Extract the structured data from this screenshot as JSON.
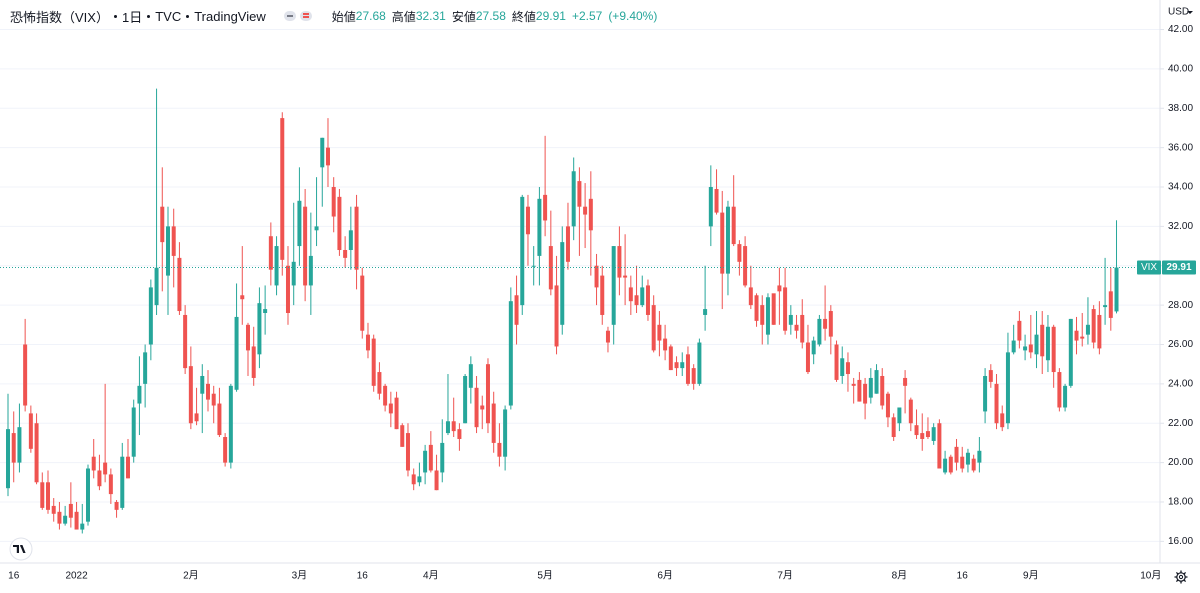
{
  "chart_data": {
    "type": "candlestick",
    "title": "恐怖指数（VIX）",
    "interval": "1日",
    "exchange": "TVC",
    "source": "TradingView",
    "ohlc_labels": {
      "open": "始値",
      "high": "高値",
      "low": "安値",
      "close": "終値"
    },
    "change": "+2.57",
    "change_percent": "(+9.40%)",
    "currency": "USD",
    "name": "VIX",
    "up_color": "#26a69a",
    "down_color": "#ef5350",
    "grid": true,
    "ylim": [
      14.9,
      43.5
    ],
    "yticks": [
      {
        "value": 16,
        "label": "16.00"
      },
      {
        "value": 18,
        "label": "18.00"
      },
      {
        "value": 20,
        "label": "20.00"
      },
      {
        "value": 22,
        "label": "22.00"
      },
      {
        "value": 24,
        "label": "24.00"
      },
      {
        "value": 26,
        "label": "26.00"
      },
      {
        "value": 28,
        "label": "28.00"
      },
      {
        "value": 30,
        "label": "30.00"
      },
      {
        "value": 32,
        "label": "32.00"
      },
      {
        "value": 34,
        "label": "34.00"
      },
      {
        "value": 36,
        "label": "36.00"
      },
      {
        "value": 38,
        "label": "38.00"
      },
      {
        "value": 40,
        "label": "40.00"
      },
      {
        "value": 42,
        "label": "42.00"
      }
    ],
    "categories": [
      null,
      "16",
      null,
      null,
      null,
      null,
      null,
      null,
      null,
      null,
      null,
      null,
      "2022",
      null,
      null,
      null,
      null,
      null,
      null,
      null,
      null,
      null,
      null,
      null,
      null,
      null,
      null,
      null,
      null,
      null,
      null,
      null,
      "2月",
      null,
      null,
      null,
      null,
      null,
      null,
      null,
      null,
      null,
      null,
      null,
      null,
      null,
      null,
      null,
      null,
      null,
      null,
      "3月",
      null,
      null,
      null,
      null,
      null,
      null,
      null,
      null,
      null,
      null,
      "16",
      null,
      null,
      null,
      null,
      null,
      null,
      null,
      null,
      null,
      null,
      null,
      "4月",
      null,
      null,
      null,
      null,
      null,
      null,
      null,
      null,
      null,
      null,
      null,
      null,
      null,
      null,
      null,
      null,
      null,
      null,
      null,
      "5月",
      null,
      null,
      null,
      null,
      null,
      null,
      null,
      null,
      null,
      null,
      null,
      null,
      null,
      null,
      null,
      null,
      null,
      null,
      null,
      null,
      "6月",
      null,
      null,
      null,
      null,
      null,
      null,
      null,
      null,
      null,
      null,
      null,
      null,
      null,
      null,
      null,
      null,
      null,
      null,
      null,
      null,
      "7月",
      null,
      null,
      null,
      null,
      null,
      null,
      null,
      null,
      null,
      null,
      null,
      null,
      null,
      null,
      null,
      null,
      null,
      null,
      null,
      "8月",
      null,
      null,
      null,
      null,
      null,
      null,
      null,
      null,
      null,
      null,
      "16",
      null,
      null,
      null,
      null,
      null,
      null,
      null,
      null,
      null,
      null,
      null,
      "9月",
      null,
      null,
      null,
      null,
      null,
      null,
      null,
      null,
      null,
      null,
      null,
      null,
      null,
      null,
      null,
      null,
      null,
      null,
      null,
      null,
      "10月"
    ],
    "open": [
      18.7,
      21.5,
      20.0,
      26.0,
      22.5,
      22.0,
      19.0,
      19.0,
      17.8,
      17.5,
      16.9,
      17.9,
      17.5,
      16.6,
      17.0,
      20.3,
      19.6,
      20.0,
      19.4,
      18.0,
      17.7,
      20.3,
      20.3,
      23.0,
      24.0,
      26.0,
      28.0,
      33.0,
      29.5,
      32.0,
      30.4,
      27.5,
      24.9,
      22.5,
      23.5,
      24.0,
      23.5,
      23.0,
      21.3,
      20.0,
      23.7,
      28.5,
      27.0,
      25.9,
      25.5,
      27.6,
      31.5,
      29.0,
      37.5,
      30.0,
      29.0,
      31.0,
      33.0,
      29.0,
      31.8,
      35.0,
      36.0,
      34.0,
      33.5,
      30.8,
      30.8,
      33.0,
      29.5,
      26.5,
      26.3,
      24.6,
      23.9,
      23.0,
      23.3,
      21.9,
      21.5,
      19.4,
      19.0,
      19.5,
      20.9,
      19.6,
      19.5,
      21.5,
      22.1,
      21.7,
      22.0,
      23.8,
      23.8,
      22.9,
      25.0,
      23.0,
      21.0,
      20.3,
      22.9,
      28.5,
      28.0,
      33.0,
      30.0,
      30.5,
      33.6,
      31.0,
      29.0,
      27.0,
      32.0,
      32.0,
      34.3,
      33.0,
      33.4,
      30.0,
      29.5,
      26.7,
      27.0,
      31.0,
      29.5,
      28.9,
      28.5,
      28.0,
      29.0,
      28.0,
      27.0,
      26.3,
      25.9,
      25.1,
      24.8,
      25.5,
      24.8,
      24.0,
      27.5,
      32.0,
      33.9,
      32.7,
      29.6,
      33.0,
      31.1,
      31.0,
      28.9,
      28.5,
      28.0,
      26.5,
      28.6,
      29.0,
      28.9,
      27.0,
      27.0,
      27.5,
      26.1,
      25.5,
      26.0,
      27.3,
      27.7,
      26.0,
      24.4,
      25.1,
      24.0,
      24.2,
      24.0,
      23.3,
      23.5,
      24.4,
      23.5,
      22.3,
      22.0,
      24.3,
      23.2,
      21.9,
      21.5,
      21.6,
      21.1,
      22.0,
      19.5,
      20.3,
      20.8,
      20.3,
      19.9,
      20.2,
      20.0,
      22.6,
      24.7,
      24.0,
      22.5,
      22.0,
      25.6,
      27.2,
      25.7,
      26.0,
      25.5,
      27.0,
      25.2,
      26.9,
      24.6,
      22.8,
      23.9,
      26.7,
      26.4,
      26.5,
      27.8,
      27.5,
      27.9,
      28.7,
      27.68,
      null,
      null,
      null,
      null,
      null,
      null
    ],
    "high": [
      23.5,
      22.6,
      23.0,
      27.3,
      22.9,
      22.5,
      19.5,
      19.6,
      18.2,
      18.0,
      17.8,
      19.0,
      18.0,
      17.9,
      19.9,
      21.2,
      20.4,
      24.0,
      19.7,
      18.1,
      21.0,
      21.2,
      23.2,
      25.4,
      26.0,
      29.3,
      39.0,
      35.0,
      33.0,
      32.9,
      31.2,
      28.0,
      25.9,
      23.8,
      25.0,
      24.7,
      23.9,
      23.8,
      21.5,
      24.0,
      29.1,
      31.0,
      27.1,
      26.9,
      28.9,
      29.0,
      32.2,
      31.5,
      37.8,
      31.0,
      33.2,
      35.0,
      33.9,
      32.7,
      34.5,
      36.5,
      37.5,
      34.5,
      33.9,
      31.5,
      33.0,
      33.6,
      29.9,
      27.1,
      26.5,
      25.1,
      24.0,
      23.6,
      23.6,
      22.0,
      22.0,
      19.7,
      20.0,
      20.9,
      21.6,
      20.4,
      22.2,
      24.5,
      23.3,
      22.0,
      24.5,
      25.4,
      24.4,
      23.4,
      25.3,
      23.6,
      22.0,
      22.9,
      28.9,
      29.5,
      33.6,
      33.6,
      31.0,
      34.0,
      36.6,
      32.8,
      30.5,
      32.0,
      33.2,
      35.5,
      35.0,
      34.2,
      34.8,
      30.6,
      30.0,
      26.9,
      31.0,
      32.0,
      31.6,
      29.5,
      30.0,
      29.5,
      29.3,
      28.5,
      27.7,
      27.0,
      26.0,
      25.4,
      25.6,
      25.9,
      25.0,
      26.3,
      30.0,
      35.1,
      34.9,
      33.8,
      33.3,
      34.6,
      31.3,
      31.5,
      30.0,
      28.6,
      28.5,
      28.6,
      28.5,
      29.9,
      29.9,
      28.0,
      27.5,
      28.3,
      27.0,
      26.4,
      27.5,
      29.0,
      28.0,
      26.2,
      25.9,
      25.6,
      24.3,
      24.6,
      24.3,
      24.8,
      25.0,
      24.8,
      23.6,
      22.5,
      22.8,
      24.7,
      23.3,
      22.7,
      22.5,
      22.3,
      22.0,
      22.2,
      20.6,
      20.4,
      21.2,
      20.8,
      20.7,
      20.4,
      21.3,
      24.8,
      25.0,
      24.5,
      22.9,
      26.6,
      27.0,
      27.7,
      26.5,
      27.5,
      27.7,
      27.7,
      27.5,
      27.0,
      24.8,
      24.0,
      27.3,
      27.4,
      27.6,
      28.4,
      28.0,
      28.2,
      30.4,
      29.9,
      32.31,
      null,
      null,
      null,
      null,
      null,
      null
    ],
    "low": [
      18.3,
      19.0,
      19.5,
      22.6,
      20.5,
      18.9,
      17.6,
      17.4,
      17.0,
      16.6,
      16.8,
      16.7,
      16.6,
      16.4,
      16.8,
      19.2,
      18.6,
      19.0,
      17.9,
      17.2,
      17.6,
      19.2,
      20.0,
      21.4,
      22.8,
      25.2,
      27.5,
      28.7,
      27.5,
      28.9,
      27.5,
      24.5,
      21.7,
      21.9,
      21.5,
      22.6,
      22.0,
      21.3,
      19.8,
      19.7,
      23.6,
      27.0,
      24.4,
      23.9,
      24.8,
      26.5,
      29.0,
      28.5,
      29.5,
      27.0,
      28.0,
      30.0,
      28.2,
      27.5,
      31.0,
      33.0,
      34.0,
      31.7,
      30.5,
      29.9,
      29.8,
      28.8,
      26.3,
      25.3,
      23.6,
      23.2,
      22.6,
      21.8,
      21.7,
      20.8,
      19.3,
      18.6,
      18.8,
      18.9,
      19.5,
      18.6,
      19.0,
      21.4,
      21.3,
      20.6,
      22.0,
      23.0,
      21.5,
      21.7,
      21.5,
      20.5,
      19.8,
      19.6,
      22.7,
      26.0,
      27.5,
      30.0,
      29.0,
      29.0,
      31.5,
      28.5,
      25.5,
      26.5,
      29.8,
      31.3,
      30.5,
      30.9,
      29.5,
      28.0,
      27.0,
      25.6,
      26.0,
      28.5,
      28.0,
      27.5,
      27.6,
      27.9,
      27.2,
      25.6,
      25.4,
      25.2,
      24.7,
      24.4,
      24.4,
      23.9,
      23.7,
      23.9,
      26.7,
      31.0,
      32.6,
      27.8,
      28.5,
      31.0,
      29.5,
      28.9,
      27.8,
      26.9,
      26.0,
      26.0,
      27.0,
      27.0,
      26.5,
      26.5,
      26.3,
      25.8,
      24.5,
      25.0,
      25.9,
      26.2,
      25.5,
      24.1,
      24.0,
      23.6,
      23.0,
      23.1,
      22.2,
      23.0,
      23.5,
      22.7,
      21.8,
      21.1,
      21.6,
      22.5,
      21.6,
      21.2,
      20.6,
      21.2,
      20.9,
      19.7,
      19.4,
      19.4,
      19.6,
      19.5,
      19.5,
      19.5,
      19.5,
      22.0,
      23.8,
      21.7,
      21.6,
      21.7,
      25.5,
      25.8,
      25.2,
      25.3,
      24.8,
      24.5,
      24.6,
      23.8,
      22.6,
      22.6,
      23.8,
      25.5,
      25.9,
      26.0,
      25.8,
      25.5,
      27.0,
      26.7,
      27.58,
      null,
      null,
      null,
      null,
      null,
      null
    ],
    "close": [
      21.7,
      20.0,
      21.8,
      22.9,
      20.7,
      19.0,
      17.7,
      17.6,
      17.4,
      16.9,
      17.3,
      17.2,
      16.6,
      16.9,
      19.7,
      19.6,
      18.8,
      19.4,
      18.4,
      17.6,
      20.3,
      19.2,
      22.8,
      23.9,
      25.6,
      28.9,
      29.9,
      31.2,
      32.0,
      30.5,
      27.7,
      24.8,
      22.0,
      22.1,
      24.4,
      23.2,
      22.9,
      21.4,
      20.0,
      23.9,
      27.4,
      28.3,
      25.7,
      24.3,
      28.1,
      27.8,
      29.8,
      31.0,
      30.3,
      27.6,
      30.2,
      33.3,
      29.0,
      30.5,
      32.0,
      36.5,
      35.1,
      32.5,
      30.8,
      30.4,
      31.8,
      29.8,
      26.7,
      25.7,
      23.9,
      23.5,
      22.9,
      22.5,
      21.7,
      20.8,
      19.6,
      18.9,
      19.3,
      20.6,
      19.6,
      18.6,
      21.0,
      22.1,
      21.6,
      21.2,
      24.4,
      25.0,
      21.8,
      22.7,
      22.0,
      21.0,
      20.3,
      22.7,
      28.2,
      27.0,
      33.5,
      31.6,
      30.0,
      33.4,
      32.3,
      28.8,
      25.9,
      31.2,
      30.2,
      34.8,
      33.0,
      32.6,
      31.8,
      28.9,
      27.5,
      26.1,
      31.0,
      29.4,
      29.4,
      28.2,
      28.0,
      28.9,
      27.5,
      25.7,
      26.2,
      25.7,
      24.7,
      24.8,
      25.1,
      24.0,
      24.0,
      26.1,
      27.8,
      34.0,
      32.7,
      29.6,
      33.0,
      31.1,
      30.2,
      29.0,
      28.0,
      27.2,
      27.0,
      28.4,
      27.0,
      28.7,
      26.7,
      27.5,
      26.7,
      26.1,
      24.6,
      26.2,
      27.3,
      26.8,
      26.4,
      24.2,
      25.3,
      24.5,
      23.9,
      23.1,
      23.0,
      24.3,
      24.7,
      22.9,
      22.3,
      21.3,
      22.8,
      23.9,
      22.0,
      21.4,
      21.2,
      21.3,
      21.8,
      19.7,
      20.2,
      19.5,
      20.0,
      19.7,
      20.5,
      19.6,
      20.6,
      24.4,
      24.1,
      22.0,
      21.8,
      25.6,
      26.2,
      26.2,
      25.9,
      25.6,
      26.5,
      25.4,
      26.9,
      24.6,
      22.8,
      23.9,
      27.3,
      26.2,
      26.3,
      27.0,
      26.1,
      25.8,
      28.0,
      27.35,
      29.91,
      null,
      null,
      null,
      null,
      null,
      null
    ]
  }
}
